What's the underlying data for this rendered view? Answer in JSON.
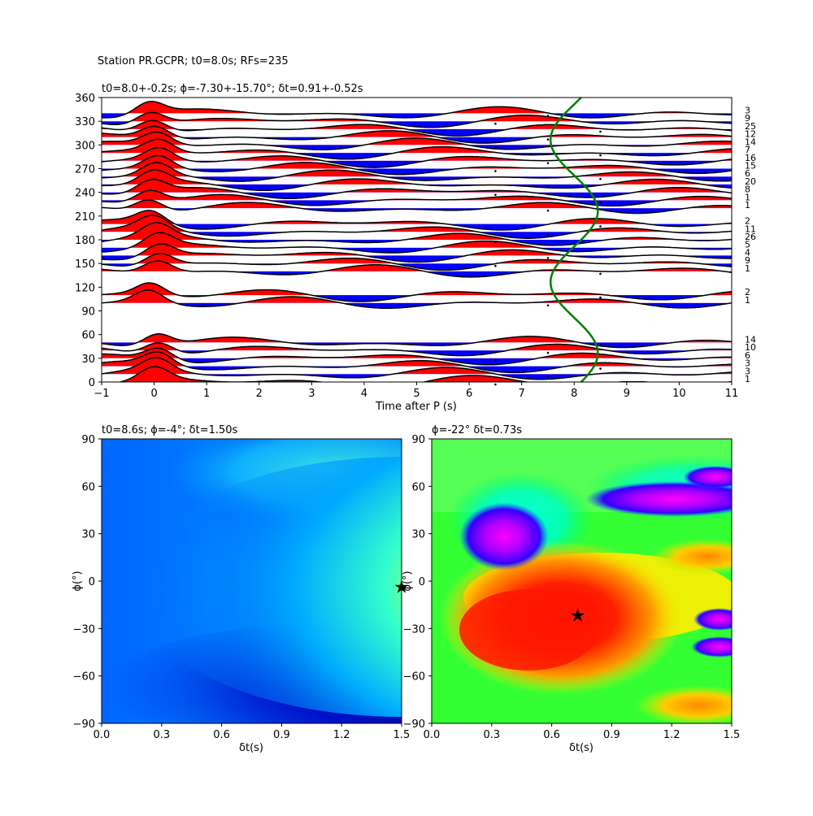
{
  "figure": {
    "suptitle": "Station PR.GCPR; t0=8.0s; RFs=235"
  },
  "chart_data": [
    {
      "type": "line",
      "title": "t0=8.0+-0.2s; ϕ=-7.30+-15.70°; δt=0.91+-0.52s",
      "xlabel": "Time after P (s)",
      "ylabel": "",
      "xlim": [
        -1,
        11
      ],
      "ylim": [
        0,
        360
      ],
      "xticks": [
        -1,
        0,
        1,
        2,
        3,
        4,
        5,
        6,
        7,
        8,
        9,
        10,
        11
      ],
      "yticks": [
        0,
        30,
        60,
        90,
        120,
        150,
        180,
        210,
        240,
        270,
        300,
        330,
        360
      ],
      "fill_positive_color": "#ff0000",
      "fill_negative_color": "#0000ff",
      "trace_color": "#000000",
      "t0_curve_color": "#008000",
      "t0_curve": {
        "baseline": 8.0,
        "amplitude": 0.45
      },
      "traces": [
        {
          "baz": 0,
          "count": "1"
        },
        {
          "baz": 10,
          "count": "3"
        },
        {
          "baz": 20,
          "count": "3"
        },
        {
          "baz": 30,
          "count": "6"
        },
        {
          "baz": 40,
          "count": "10"
        },
        {
          "baz": 50,
          "count": "14"
        },
        {
          "baz": 100,
          "count": "1"
        },
        {
          "baz": 110,
          "count": "2"
        },
        {
          "baz": 140,
          "count": "1"
        },
        {
          "baz": 150,
          "count": "9"
        },
        {
          "baz": 160,
          "count": "4"
        },
        {
          "baz": 170,
          "count": "5"
        },
        {
          "baz": 180,
          "count": "26"
        },
        {
          "baz": 190,
          "count": "11"
        },
        {
          "baz": 200,
          "count": "2"
        },
        {
          "baz": 220,
          "count": "1"
        },
        {
          "baz": 230,
          "count": "1"
        },
        {
          "baz": 240,
          "count": "8"
        },
        {
          "baz": 250,
          "count": "20"
        },
        {
          "baz": 260,
          "count": "6"
        },
        {
          "baz": 270,
          "count": "15"
        },
        {
          "baz": 280,
          "count": "16"
        },
        {
          "baz": 290,
          "count": "7"
        },
        {
          "baz": 300,
          "count": "14"
        },
        {
          "baz": 310,
          "count": "12"
        },
        {
          "baz": 320,
          "count": "25"
        },
        {
          "baz": 330,
          "count": "9"
        },
        {
          "baz": 340,
          "count": "3"
        }
      ]
    },
    {
      "type": "heatmap",
      "title": "t0=8.6s; ϕ=-4°; δt=1.50s",
      "xlabel": "δt(s)",
      "ylabel": "ϕ(°)",
      "xlim": [
        0.0,
        1.5
      ],
      "ylim": [
        -90,
        90
      ],
      "xticks": [
        "0.0",
        "0.3",
        "0.6",
        "0.9",
        "1.2",
        "1.5"
      ],
      "yticks": [
        "90",
        "60",
        "30",
        "0",
        "−30",
        "−60",
        "−90"
      ],
      "colormap": "jet",
      "best": {
        "dt": 1.5,
        "phi": -4
      }
    },
    {
      "type": "heatmap",
      "title": "ϕ=-22° δt=0.73s",
      "xlabel": "δt(s)",
      "ylabel": "ϕ(°)",
      "xlim": [
        0.0,
        1.5
      ],
      "ylim": [
        -90,
        90
      ],
      "xticks": [
        "0.0",
        "0.3",
        "0.6",
        "0.9",
        "1.2",
        "1.5"
      ],
      "yticks": [
        "90",
        "60",
        "30",
        "0",
        "−30",
        "−60",
        "−90"
      ],
      "colormap": "hsv",
      "best": {
        "dt": 0.73,
        "phi": -22
      }
    }
  ]
}
